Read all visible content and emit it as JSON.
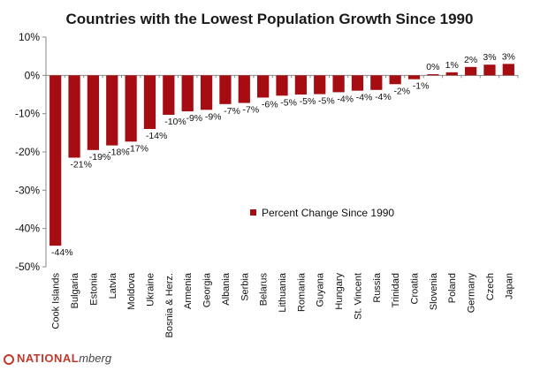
{
  "chart_data": {
    "type": "bar",
    "title": "Countries with the Lowest Population Growth Since 1990",
    "xlabel": "",
    "ylabel": "",
    "ylim": [
      -50,
      10
    ],
    "yticks": [
      "10%",
      "0%",
      "-10%",
      "-20%",
      "-30%",
      "-40%",
      "-50%"
    ],
    "grid": false,
    "legend_position": "center-right",
    "bar_color": "#a50d12",
    "categories": [
      "Cook Islands",
      "Bulgaria",
      "Estonia",
      "Latvia",
      "Moldova",
      "Ukraine",
      "Bosnia & Herz.",
      "Armenia",
      "Georgia",
      "Albania",
      "Serbia",
      "Belarus",
      "Lithuania",
      "Romania",
      "Guyana",
      "Hungary",
      "St. Vincent",
      "Russia",
      "Trinidad",
      "Croatia",
      "Slovenia",
      "Poland",
      "Germany",
      "Czech",
      "Japan"
    ],
    "series": [
      {
        "name": "Percent Change Since 1990",
        "values": [
          -44.5,
          -21.5,
          -19.5,
          -18.3,
          -17.3,
          -14.0,
          -10.3,
          -9.4,
          -9.0,
          -7.5,
          -7.2,
          -5.8,
          -5.3,
          -5.0,
          -4.9,
          -4.4,
          -4.0,
          -3.8,
          -2.3,
          -1.0,
          0.3,
          0.8,
          2.2,
          2.8,
          3.0
        ],
        "labels": [
          "-44%",
          "-21%",
          "-19%",
          "-18%",
          "-17%",
          "-14%",
          "-10%",
          "-9%",
          "-9%",
          "-7%",
          "-7%",
          "-6%",
          "-5%",
          "-5%",
          "-5%",
          "-4%",
          "-4%",
          "-4%",
          "-2%",
          "-1%",
          "0%",
          "1%",
          "2%",
          "3%",
          "3%"
        ]
      }
    ]
  },
  "watermark": {
    "brand": "NATIONAL",
    "suffix": "mberg"
  }
}
